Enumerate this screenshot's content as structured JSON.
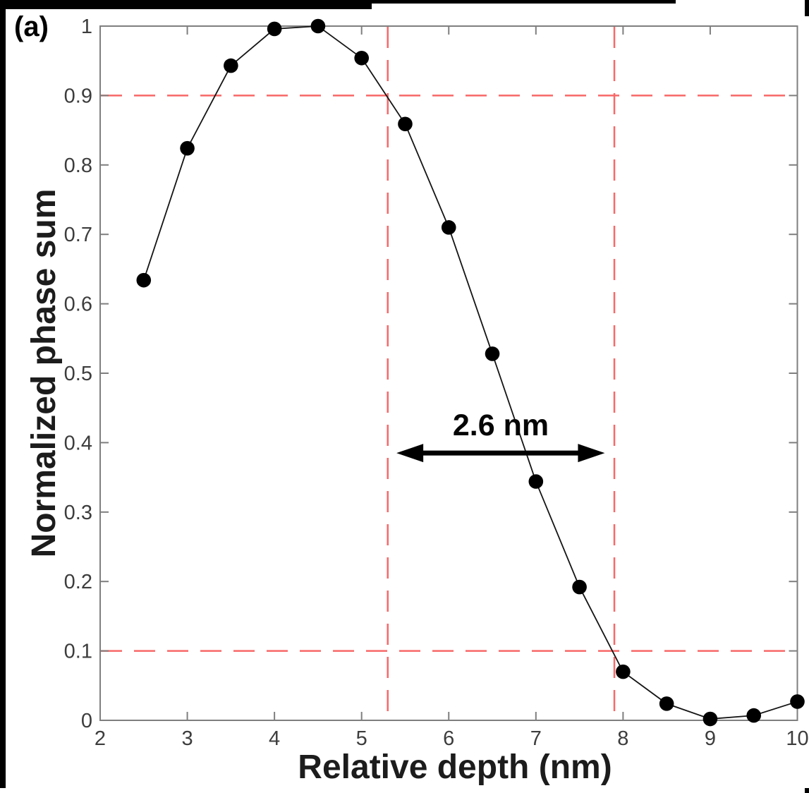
{
  "panel_label": "(a)",
  "colors": {
    "axis": "#7f7f7f",
    "tick_label": "#3d3d3d",
    "axis_title": "#1c1c1c",
    "data_line": "#141414",
    "marker": "#000000",
    "dashed_reference": "#f86868",
    "arrow": "#000000",
    "frame": "#000000"
  },
  "chart_data": {
    "type": "line",
    "title": "",
    "xlabel": "Relative depth (nm)",
    "ylabel": "Normalized phase sum",
    "xlim": [
      2,
      10
    ],
    "ylim": [
      0,
      1
    ],
    "grid": false,
    "legend": "none",
    "marker": "filled-circle",
    "x": [
      2.5,
      3.0,
      3.5,
      4.0,
      4.5,
      5.0,
      5.5,
      6.0,
      6.5,
      7.0,
      7.5,
      8.0,
      8.5,
      9.0,
      9.5,
      10.0
    ],
    "y": [
      0.634,
      0.824,
      0.943,
      0.996,
      1.0,
      0.954,
      0.859,
      0.71,
      0.528,
      0.344,
      0.192,
      0.07,
      0.024,
      0.002,
      0.007,
      0.027
    ],
    "x_ticks": [
      2,
      3,
      4,
      5,
      6,
      7,
      8,
      9,
      10
    ],
    "x_tick_labels": [
      "2",
      "3",
      "4",
      "5",
      "6",
      "7",
      "8",
      "9",
      "10"
    ],
    "y_ticks": [
      0,
      0.1,
      0.2,
      0.3,
      0.4,
      0.5,
      0.6,
      0.7,
      0.8,
      0.9,
      1
    ],
    "y_tick_labels": [
      "0",
      "0.1",
      "0.2",
      "0.3",
      "0.4",
      "0.5",
      "0.6",
      "0.7",
      "0.8",
      "0.9",
      "1"
    ],
    "reference_lines": {
      "horizontal_y": [
        0.9,
        0.1
      ],
      "vertical_x": [
        5.3,
        7.9
      ],
      "style": "dashed"
    },
    "annotation": {
      "label": "2.6 nm",
      "arrow_y": 0.385,
      "arrow_x_start": 5.4,
      "arrow_x_end": 7.79
    }
  }
}
